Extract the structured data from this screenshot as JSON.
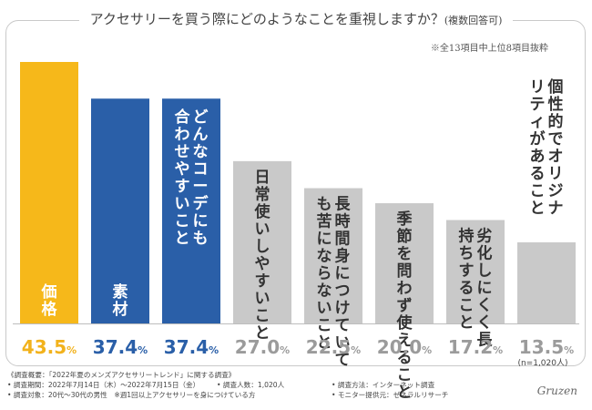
{
  "chart_data": {
    "type": "bar",
    "title": "アクセサリーを買う際にどのようなことを重視しますか？",
    "title_suffix": "(複数回答可)",
    "subtitle": "※全13項目中上位8項目抜粋",
    "categories": [
      "価格",
      "素材",
      "どんなコーデにも合わせやすいこと",
      "日常使いしやすいこと",
      "長時間身につけていても苦にならないこと",
      "季節を問わず使えること",
      "劣化しにくく長持ちすること",
      "個性的でオリジナリティがあること"
    ],
    "values": [
      43.5,
      37.4,
      37.4,
      27.0,
      22.5,
      20.0,
      17.2,
      13.5
    ],
    "value_labels": [
      "43.5",
      "37.4",
      "37.4",
      "27.0",
      "22.5",
      "20.0",
      "17.2",
      "13.5"
    ],
    "unit": "%",
    "colors": [
      "#f6b81a",
      "#2a5fa8",
      "#2a5fa8",
      "#c9c9c9",
      "#c9c9c9",
      "#c9c9c9",
      "#c9c9c9",
      "#c9c9c9"
    ],
    "label_colors": [
      "#f2b21c",
      "#2a5fa8",
      "#2a5fa8",
      "#9b9b9b",
      "#9b9b9b",
      "#9b9b9b",
      "#9b9b9b",
      "#9b9b9b"
    ],
    "sample_note": "(n=1,020人)",
    "ylim": [
      0,
      50
    ],
    "xlabel": "",
    "ylabel": ""
  },
  "footer": {
    "heading": "《調査概要：「2022年夏のメンズアクセサリートレンド」に関する調査》",
    "period": "• 調査期間：2022年7月14日（木）〜2022年7月15日（金）",
    "people": "• 調査人数：1,020人",
    "method": "• 調査方法：インターネット調査",
    "target": "• 調査対象：20代〜30代の男性　※週1回以上アクセサリーを身につけている方",
    "provider": "• モニター提供元：ゼネラルリサーチ"
  },
  "signature": "Gruzen"
}
